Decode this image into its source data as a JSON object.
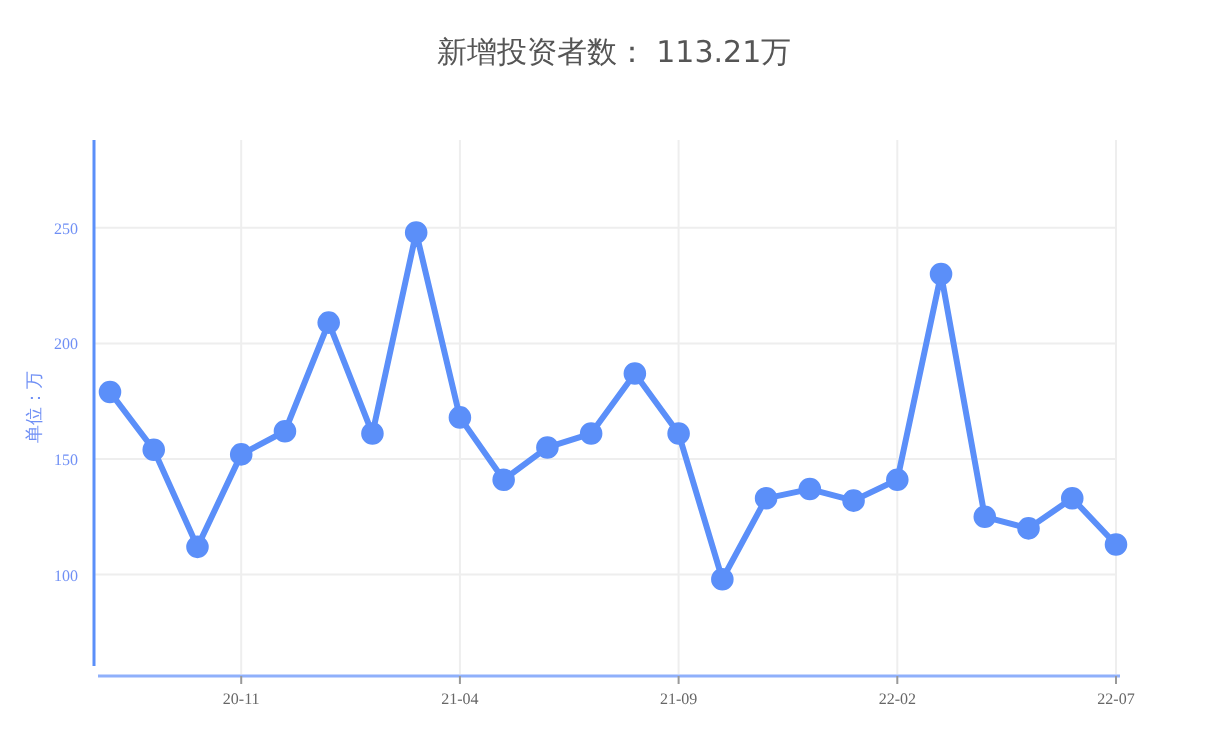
{
  "chart_data": {
    "type": "line",
    "title": "新增投资者数： 113.21万",
    "ylabel": "单位：万",
    "categories": [
      null,
      null,
      null,
      "20-11",
      null,
      null,
      null,
      null,
      "21-04",
      null,
      null,
      null,
      null,
      "21-09",
      null,
      null,
      null,
      null,
      "22-02",
      null,
      null,
      null,
      null,
      "22-07"
    ],
    "series": [
      {
        "color": "#5b8ff9",
        "values": [
          179,
          154,
          112,
          152,
          162,
          209,
          161,
          248,
          168,
          141,
          155,
          161,
          187,
          161,
          98,
          133,
          137,
          132,
          141,
          230,
          125,
          120,
          133,
          113
        ]
      }
    ],
    "ylim": [
      57,
      288
    ],
    "yticks": [
      100,
      150,
      200,
      250
    ],
    "grid": true,
    "marker": "circle",
    "line_style": "solid"
  }
}
